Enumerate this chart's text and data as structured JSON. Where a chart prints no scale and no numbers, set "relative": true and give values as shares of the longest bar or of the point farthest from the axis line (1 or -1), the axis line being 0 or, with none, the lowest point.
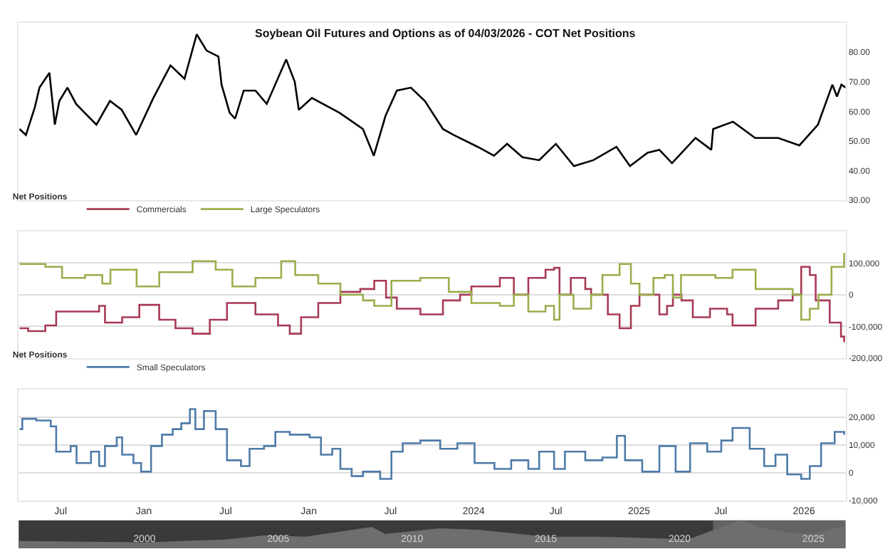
{
  "chart_data": [
    {
      "type": "line",
      "title": "Soybean Oil Futures and Options as of 04/03/2026 - COT Net Positions",
      "xlim": [
        "2021-03-30",
        "2026-04-03"
      ],
      "ylim": [
        30,
        90
      ],
      "yticks": [
        {
          "value": 30,
          "label": "30.00"
        },
        {
          "value": 40,
          "label": "40.00"
        },
        {
          "value": 50,
          "label": "50.00"
        },
        {
          "value": 60,
          "label": "60.00"
        },
        {
          "value": 70,
          "label": "70.00"
        },
        {
          "value": 80,
          "label": "80.00"
        }
      ],
      "tick_labels": "y",
      "series": [
        {
          "color": "#000000",
          "x": [
            "2021-04-01",
            "2021-04-15",
            "2021-05-05",
            "2021-05-15",
            "2021-06-06",
            "2021-06-18",
            "2021-06-28",
            "2021-07-16",
            "2021-08-04",
            "2021-08-23",
            "2021-09-18",
            "2021-10-18",
            "2021-11-13",
            "2021-12-15",
            "2022-01-22",
            "2022-03-01",
            "2022-04-01",
            "2022-04-28",
            "2022-05-20",
            "2022-06-15",
            "2022-06-22",
            "2022-07-10",
            "2022-07-22",
            "2022-08-10",
            "2022-09-05",
            "2022-09-30",
            "2022-11-12",
            "2022-12-01",
            "2022-12-10",
            "2023-01-08",
            "2023-03-10",
            "2023-05-01",
            "2023-05-25",
            "2023-06-20",
            "2023-07-15",
            "2023-08-15",
            "2023-09-15",
            "2023-10-25",
            "2023-11-18",
            "2024-01-10",
            "2024-02-15",
            "2024-03-15",
            "2024-04-18",
            "2024-05-25",
            "2024-07-01",
            "2024-08-10",
            "2024-09-22",
            "2024-11-12",
            "2024-12-12",
            "2025-01-20",
            "2025-02-15",
            "2025-03-15",
            "2025-05-06",
            "2025-06-10",
            "2025-06-14",
            "2025-07-28",
            "2025-09-15",
            "2025-11-05",
            "2025-12-22",
            "2026-02-01",
            "2026-03-05",
            "2026-03-15",
            "2026-03-25",
            "2026-04-03"
          ],
          "values": [
            54,
            52,
            61.5,
            68,
            73,
            55.5,
            63.5,
            68,
            62.5,
            59.5,
            55.5,
            63.5,
            60.5,
            52,
            64.5,
            75.5,
            71,
            86,
            80.5,
            78.5,
            69,
            59.5,
            57.5,
            67,
            67,
            62.5,
            77.5,
            70,
            60.5,
            64.5,
            59.5,
            54,
            45,
            58.5,
            67,
            68,
            63.5,
            54,
            52,
            48,
            45,
            49,
            44.5,
            43.5,
            49,
            41.5,
            43.5,
            48,
            41.5,
            46,
            47,
            42.5,
            51,
            47,
            54,
            56.5,
            51,
            51,
            48.5,
            55.5,
            69,
            65,
            69,
            68
          ]
        }
      ]
    },
    {
      "type": "step",
      "legend_title": "Net Positions",
      "legend": "top left",
      "grid": "y",
      "xlim": [
        "2021-03-30",
        "2026-04-03"
      ],
      "ylim": [
        -200000,
        200000
      ],
      "yticks": [
        {
          "value": -200000,
          "label": "-200,000"
        },
        {
          "value": -100000,
          "label": "-100,000"
        },
        {
          "value": 0,
          "label": "0"
        },
        {
          "value": 100000,
          "label": "100,000"
        },
        {
          "value": 200000,
          "label": null
        }
      ],
      "tick_labels": "y",
      "series": [
        {
          "name": "Commercials",
          "color": "#a83a55",
          "x": [
            "2021-04-01",
            "2021-04-20",
            "2021-05-28",
            "2021-06-21",
            "2021-08-11",
            "2021-09-24",
            "2021-10-07",
            "2021-11-14",
            "2021-12-22",
            "2022-02-04",
            "2022-03-12",
            "2022-04-19",
            "2022-05-27",
            "2022-07-04",
            "2022-09-05",
            "2022-10-25",
            "2022-11-20",
            "2022-12-15",
            "2023-01-22",
            "2023-03-12",
            "2023-04-25",
            "2023-05-26",
            "2023-06-21",
            "2023-07-15",
            "2023-09-05",
            "2023-10-25",
            "2023-12-02",
            "2023-12-27",
            "2024-02-28",
            "2024-03-30",
            "2024-05-01",
            "2024-06-08",
            "2024-06-27",
            "2024-07-09",
            "2024-08-03",
            "2024-09-04",
            "2024-09-17",
            "2024-10-24",
            "2024-11-19",
            "2024-12-14",
            "2025-01-02",
            "2025-02-15",
            "2025-03-04",
            "2025-03-17",
            "2025-04-05",
            "2025-04-30",
            "2025-06-07",
            "2025-07-15",
            "2025-07-27",
            "2025-09-16",
            "2025-11-05",
            "2025-12-07",
            "2025-12-26",
            "2026-01-14",
            "2026-01-27",
            "2026-02-27",
            "2026-03-24",
            "2026-03-31"
          ],
          "values": [
            -106000,
            -115000,
            -97000,
            -53000,
            -53000,
            -35000,
            -88000,
            -71000,
            -32000,
            -79000,
            -106000,
            -123000,
            -79000,
            -26000,
            -62000,
            -97000,
            -123000,
            -71000,
            -26000,
            9000,
            18000,
            44000,
            -9000,
            -44000,
            -62000,
            -18000,
            0,
            26000,
            53000,
            0,
            53000,
            79000,
            85000,
            0,
            53000,
            18000,
            0,
            -62000,
            -106000,
            -35000,
            0,
            -62000,
            -35000,
            0,
            -18000,
            -71000,
            -44000,
            -62000,
            -97000,
            -44000,
            -18000,
            0,
            88000,
            62000,
            -18000,
            -88000,
            -132000,
            -150000
          ]
        },
        {
          "name": "Large Speculators",
          "color": "#9aae4c",
          "x": [
            "2021-04-01",
            "2021-05-28",
            "2021-07-04",
            "2021-08-24",
            "2021-10-01",
            "2021-10-19",
            "2021-12-16",
            "2022-02-04",
            "2022-04-19",
            "2022-06-09",
            "2022-07-16",
            "2022-09-05",
            "2022-11-01",
            "2022-12-02",
            "2023-01-22",
            "2023-03-12",
            "2023-05-01",
            "2023-05-26",
            "2023-07-03",
            "2023-09-05",
            "2023-11-07",
            "2023-12-27",
            "2024-02-28",
            "2024-03-30",
            "2024-05-01",
            "2024-06-08",
            "2024-06-27",
            "2024-07-09",
            "2024-08-09",
            "2024-09-17",
            "2024-10-12",
            "2024-11-19",
            "2024-12-14",
            "2025-01-02",
            "2025-02-02",
            "2025-02-27",
            "2025-03-17",
            "2025-04-04",
            "2025-06-19",
            "2025-07-27",
            "2025-09-16",
            "2025-11-05",
            "2025-12-07",
            "2025-12-26",
            "2026-01-14",
            "2026-02-02",
            "2026-03-03",
            "2026-03-31"
          ],
          "values": [
            97000,
            88000,
            53000,
            62000,
            35000,
            79000,
            26000,
            71000,
            106000,
            79000,
            26000,
            53000,
            106000,
            62000,
            35000,
            0,
            -18000,
            -35000,
            44000,
            53000,
            9000,
            -26000,
            -35000,
            0,
            -53000,
            -35000,
            -79000,
            0,
            -44000,
            0,
            62000,
            97000,
            35000,
            0,
            53000,
            62000,
            -9000,
            62000,
            53000,
            79000,
            18000,
            18000,
            0,
            -79000,
            -44000,
            0,
            88000,
            132000
          ]
        }
      ]
    },
    {
      "type": "step",
      "legend_title": "Net Positions",
      "legend": "top left",
      "grid": "y",
      "xlim": [
        "2021-03-30",
        "2026-04-03"
      ],
      "ylim": [
        -10000,
        30000
      ],
      "yticks": [
        {
          "value": -10000,
          "label": "-10,000"
        },
        {
          "value": 0,
          "label": "0"
        },
        {
          "value": 10000,
          "label": "10,000"
        },
        {
          "value": 20000,
          "label": "20,000"
        },
        {
          "value": 30000,
          "label": null
        }
      ],
      "xticks": [
        {
          "value": "2021-07-01",
          "label": "Jul"
        },
        {
          "value": "2022-01-01",
          "label": "Jan"
        },
        {
          "value": "2022-07-01",
          "label": "Jul"
        },
        {
          "value": "2023-01-01",
          "label": "Jan"
        },
        {
          "value": "2023-07-01",
          "label": "Jul"
        },
        {
          "value": "2024-01-01",
          "label": "2024"
        },
        {
          "value": "2024-07-01",
          "label": "Jul"
        },
        {
          "value": "2025-01-01",
          "label": "2025"
        },
        {
          "value": "2025-07-01",
          "label": "Jul"
        },
        {
          "value": "2026-01-01",
          "label": "2026"
        }
      ],
      "series": [
        {
          "name": "Small Speculators",
          "color": "#4e7aa8",
          "x": [
            "2021-04-01",
            "2021-04-07",
            "2021-05-08",
            "2021-06-09",
            "2021-06-21",
            "2021-07-23",
            "2021-08-05",
            "2021-09-06",
            "2021-09-24",
            "2021-10-07",
            "2021-11-02",
            "2021-11-14",
            "2021-12-09",
            "2021-12-26",
            "2022-01-17",
            "2022-02-10",
            "2022-03-06",
            "2022-03-25",
            "2022-04-13",
            "2022-04-25",
            "2022-05-14",
            "2022-06-09",
            "2022-07-04",
            "2022-08-04",
            "2022-08-23",
            "2022-09-24",
            "2022-10-19",
            "2022-11-20",
            "2023-01-03",
            "2023-01-28",
            "2023-02-22",
            "2023-03-12",
            "2023-04-06",
            "2023-05-01",
            "2023-06-08",
            "2023-07-03",
            "2023-07-28",
            "2023-09-05",
            "2023-10-19",
            "2023-11-26",
            "2024-01-03",
            "2024-02-16",
            "2024-03-24",
            "2024-05-01",
            "2024-05-25",
            "2024-06-27",
            "2024-07-21",
            "2024-09-04",
            "2024-10-12",
            "2024-11-13",
            "2024-12-01",
            "2025-01-08",
            "2025-02-15",
            "2025-03-23",
            "2025-04-24",
            "2025-06-01",
            "2025-07-02",
            "2025-07-27",
            "2025-09-03",
            "2025-10-05",
            "2025-10-30",
            "2025-11-25",
            "2025-12-26",
            "2026-01-14",
            "2026-02-08",
            "2026-03-10",
            "2026-03-31"
          ],
          "values": [
            15700,
            19400,
            18800,
            16700,
            7600,
            9600,
            3500,
            7600,
            2400,
            9600,
            12700,
            6500,
            3500,
            400,
            9600,
            13700,
            15700,
            17800,
            22900,
            15700,
            22200,
            15700,
            4500,
            2400,
            8600,
            9600,
            14700,
            13700,
            12700,
            6500,
            8600,
            1400,
            -1200,
            400,
            -2200,
            7600,
            10600,
            11600,
            8600,
            10600,
            3500,
            1400,
            4500,
            1400,
            7600,
            1400,
            7600,
            4500,
            5500,
            13300,
            4500,
            400,
            9600,
            400,
            10600,
            7600,
            11600,
            16100,
            8600,
            2400,
            6500,
            -600,
            -2200,
            2400,
            10600,
            14700,
            13700
          ]
        }
      ]
    },
    {
      "type": "area",
      "relative": true,
      "tick_labels": "x",
      "xlim": [
        1995.3,
        2026.2
      ],
      "xticks": [
        2000,
        2005,
        2010,
        2015,
        2020,
        2025
      ],
      "bands": [
        {
          "axis": "x",
          "from": 2021.25,
          "to": 2026.2,
          "color": "#8c8c8c"
        }
      ],
      "series": [
        {
          "color": "#6e6e6e",
          "x": [
            1995.3,
            2000,
            2003,
            2004.5,
            2006,
            2008.5,
            2009,
            2011,
            2012.5,
            2014,
            2015,
            2017,
            2019,
            2020.3,
            2021.3,
            2022.3,
            2023,
            2024,
            2025,
            2026.2
          ],
          "values": [
            0.25,
            0.2,
            0.3,
            0.45,
            0.4,
            0.75,
            0.5,
            0.7,
            0.65,
            0.5,
            0.4,
            0.4,
            0.35,
            0.3,
            0.65,
            1,
            0.75,
            0.55,
            0.5,
            0.8
          ]
        }
      ]
    }
  ]
}
